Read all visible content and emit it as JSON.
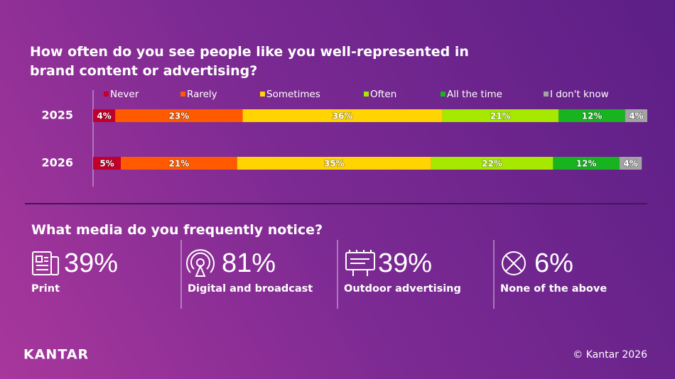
{
  "chart_data": {
    "type": "stacked-bar-horizontal",
    "title": "How often do you see people like you well-represented in brand content or advertising?",
    "categories": [
      "2025",
      "2026"
    ],
    "xlim": [
      0,
      100
    ],
    "series": [
      {
        "name": "Never",
        "color": "#c0002b",
        "values": [
          4,
          5
        ],
        "value_labels": [
          "4%",
          "5%"
        ]
      },
      {
        "name": "Rarely",
        "color": "#ff5a00",
        "values": [
          23,
          21
        ],
        "value_labels": [
          "23%",
          "21%"
        ]
      },
      {
        "name": "Sometimes",
        "color": "#ffd400",
        "values": [
          36,
          35
        ],
        "value_labels": [
          "36%",
          "35%"
        ]
      },
      {
        "name": "Often",
        "color": "#a6e800",
        "values": [
          21,
          22
        ],
        "value_labels": [
          "21%",
          "22%"
        ]
      },
      {
        "name": "All the time",
        "color": "#17b41f",
        "values": [
          12,
          12
        ],
        "value_labels": [
          "12%",
          "12%"
        ]
      },
      {
        "name": "I don't know",
        "color": "#a3a3a3",
        "values": [
          4,
          4
        ],
        "value_labels": [
          "4%",
          "4%"
        ]
      }
    ]
  },
  "media": {
    "title": "What media do you frequently notice?",
    "items": [
      {
        "stat": "39%",
        "label": "Print"
      },
      {
        "stat": "81%",
        "label": "Digital and broadcast"
      },
      {
        "stat": "39%",
        "label": "Outdoor advertising"
      },
      {
        "stat": "6%",
        "label": "None of the above"
      }
    ]
  },
  "brand": "KANTAR",
  "copyright": "© Kantar 2026"
}
